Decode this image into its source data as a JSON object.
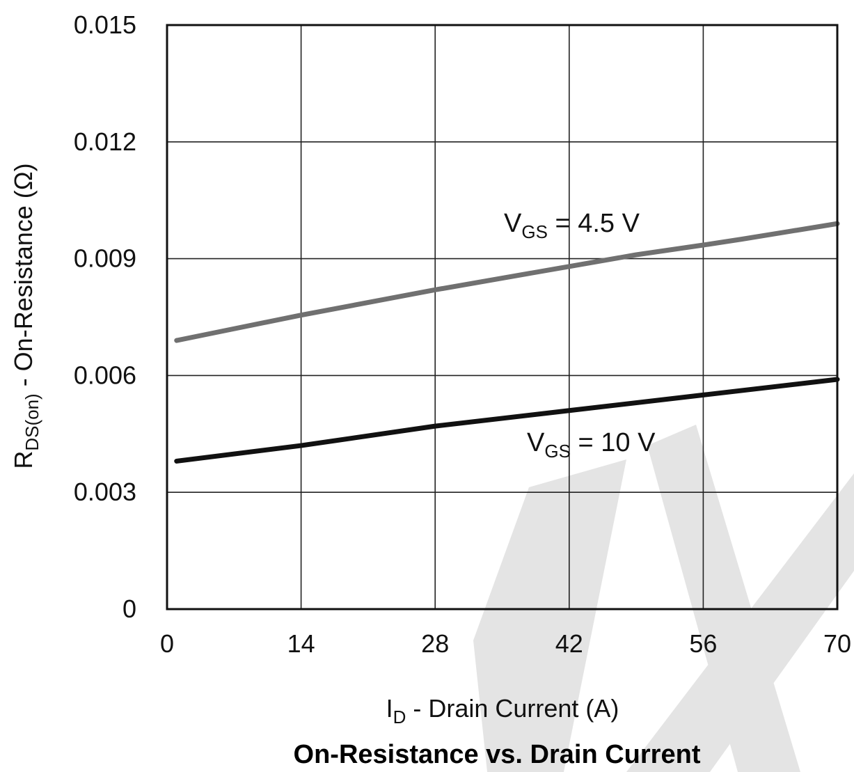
{
  "chart_data": {
    "type": "line",
    "title": "On-Resistance vs. Drain Current",
    "xlabel": {
      "main": "I",
      "sub": "D",
      "rest": " - Drain Current (A)"
    },
    "ylabel": {
      "main": "R",
      "sub": "DS(on)",
      "rest": " - On-Resistance (Ω)"
    },
    "xlim": [
      0,
      70
    ],
    "ylim": [
      0,
      0.015
    ],
    "xticks": [
      0,
      14,
      28,
      42,
      56,
      70
    ],
    "yticks": [
      0,
      0.003,
      0.006,
      0.009,
      0.012,
      0.015
    ],
    "xtick_labels": [
      "0",
      "14",
      "28",
      "42",
      "56",
      "70"
    ],
    "ytick_labels": [
      "0",
      "0.003",
      "0.006",
      "0.009",
      "0.012",
      "0.015"
    ],
    "grid": true,
    "series": [
      {
        "name": "VGS = 4.5 V",
        "label": {
          "main": "V",
          "sub": "GS",
          "rest": " = 4.5 V"
        },
        "color": "#707070",
        "x": [
          1,
          5,
          14,
          28,
          42,
          49,
          56,
          60,
          65,
          70
        ],
        "y": [
          0.0069,
          0.0071,
          0.00755,
          0.0082,
          0.0088,
          0.0091,
          0.00935,
          0.0095,
          0.0097,
          0.0099
        ]
      },
      {
        "name": "VGS = 10 V",
        "label": {
          "main": "V",
          "sub": "GS",
          "rest": " = 10 V"
        },
        "color": "#111111",
        "x": [
          1,
          14,
          28,
          42,
          56,
          70
        ],
        "y": [
          0.0038,
          0.0042,
          0.0047,
          0.0051,
          0.0055,
          0.0059
        ]
      }
    ],
    "watermark": "light gray stylized logo"
  }
}
